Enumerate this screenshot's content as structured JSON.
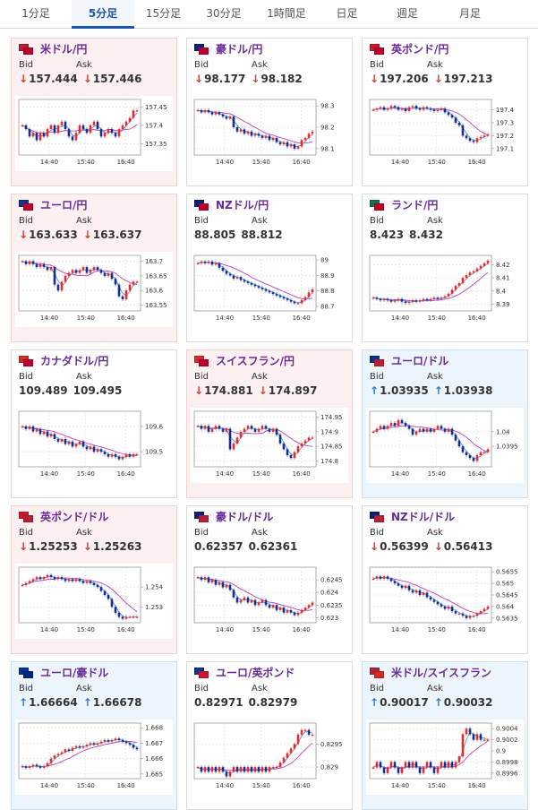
{
  "tabs": [
    {
      "label": "1分足",
      "active": false
    },
    {
      "label": "5分足",
      "active": true
    },
    {
      "label": "15分足",
      "active": false
    },
    {
      "label": "30分足",
      "active": false
    },
    {
      "label": "1時間足",
      "active": false
    },
    {
      "label": "日足",
      "active": false
    },
    {
      "label": "週足",
      "active": false
    },
    {
      "label": "月足",
      "active": false
    }
  ],
  "labels": {
    "bid": "Bid",
    "ask": "Ask"
  },
  "colors": {
    "up_candle": "#e22d2d",
    "down_candle": "#1a2d8f",
    "ma_line": "#c040c0",
    "line": "#3b9ad9",
    "arrow_down": "#d63b3b",
    "arrow_up": "#2a7fd4"
  },
  "cards": [
    {
      "pair": "米ドル/円",
      "theme": "red",
      "flags": [
        "#b22234",
        "#bc002d"
      ],
      "bid": "157.444",
      "ask": "157.446",
      "dir": "down",
      "chart_data": {
        "type": "candlestick",
        "x_ticks": [
          "14:40",
          "15:40",
          "16:40"
        ],
        "y_ticks": [
          "157.45",
          "157.4",
          "157.35"
        ],
        "ylim": [
          157.32,
          157.47
        ],
        "close": [
          157.4,
          157.39,
          157.37,
          157.38,
          157.36,
          157.38,
          157.37,
          157.39,
          157.4,
          157.38,
          157.4,
          157.41,
          157.39,
          157.37,
          157.36,
          157.38,
          157.4,
          157.39,
          157.38,
          157.4,
          157.41,
          157.39,
          157.37,
          157.38,
          157.39,
          157.38,
          157.37,
          157.39,
          157.4,
          157.41,
          157.42,
          157.44,
          157.44
        ]
      }
    },
    {
      "pair": "豪ドル/円",
      "theme": "white",
      "flags": [
        "#00247d",
        "#bc002d"
      ],
      "bid": "98.177",
      "ask": "98.182",
      "dir": "down",
      "chart_data": {
        "type": "candlestick",
        "x_ticks": [
          "14:40",
          "15:40",
          "16:40"
        ],
        "y_ticks": [
          "98.3",
          "98.2",
          "98.1"
        ],
        "ylim": [
          98.07,
          98.33
        ],
        "close": [
          98.28,
          98.27,
          98.28,
          98.27,
          98.26,
          98.27,
          98.26,
          98.25,
          98.24,
          98.25,
          98.2,
          98.18,
          98.19,
          98.17,
          98.18,
          98.16,
          98.17,
          98.16,
          98.15,
          98.16,
          98.14,
          98.15,
          98.13,
          98.12,
          98.13,
          98.11,
          98.12,
          98.1,
          98.11,
          98.14,
          98.15,
          98.17,
          98.18
        ]
      }
    },
    {
      "pair": "英ポンド/円",
      "theme": "white",
      "flags": [
        "#cf142b",
        "#bc002d"
      ],
      "bid": "197.206",
      "ask": "197.213",
      "dir": "down",
      "chart_data": {
        "type": "candlestick",
        "x_ticks": [
          "14:40",
          "15:40",
          "16:40"
        ],
        "y_ticks": [
          "197.4",
          "197.3",
          "197.2",
          "197.1"
        ],
        "ylim": [
          197.05,
          197.48
        ],
        "close": [
          197.4,
          197.41,
          197.42,
          197.4,
          197.41,
          197.43,
          197.42,
          197.4,
          197.41,
          197.39,
          197.42,
          197.43,
          197.41,
          197.4,
          197.42,
          197.41,
          197.4,
          197.39,
          197.4,
          197.41,
          197.38,
          197.36,
          197.34,
          197.3,
          197.28,
          197.2,
          197.18,
          197.16,
          197.15,
          197.18,
          197.19,
          197.2,
          197.21
        ]
      }
    },
    {
      "pair": "ユーロ/円",
      "theme": "red",
      "flags": [
        "#003399",
        "#bc002d"
      ],
      "bid": "163.633",
      "ask": "163.637",
      "dir": "down",
      "chart_data": {
        "type": "candlestick",
        "x_ticks": [
          "14:40",
          "15:40",
          "16:40"
        ],
        "y_ticks": [
          "163.7",
          "163.65",
          "163.6",
          "163.55"
        ],
        "ylim": [
          163.53,
          163.72
        ],
        "close": [
          163.7,
          163.69,
          163.7,
          163.69,
          163.68,
          163.69,
          163.68,
          163.67,
          163.68,
          163.62,
          163.6,
          163.63,
          163.65,
          163.66,
          163.67,
          163.66,
          163.67,
          163.68,
          163.66,
          163.67,
          163.68,
          163.67,
          163.66,
          163.65,
          163.66,
          163.64,
          163.62,
          163.58,
          163.57,
          163.6,
          163.62,
          163.63,
          163.63
        ]
      }
    },
    {
      "pair": "NZドル/円",
      "theme": "white",
      "flags": [
        "#00247d",
        "#bc002d"
      ],
      "bid": "88.805",
      "ask": "88.812",
      "dir": "none",
      "chart_data": {
        "type": "candlestick",
        "x_ticks": [
          "14:40",
          "15:40",
          "16:40"
        ],
        "y_ticks": [
          "89",
          "88.9",
          "88.8",
          "88.7"
        ],
        "ylim": [
          88.67,
          89.03
        ],
        "close": [
          88.98,
          88.99,
          88.98,
          88.99,
          88.97,
          88.98,
          88.95,
          88.93,
          88.91,
          88.9,
          88.88,
          88.89,
          88.87,
          88.86,
          88.85,
          88.84,
          88.83,
          88.82,
          88.81,
          88.8,
          88.79,
          88.78,
          88.77,
          88.76,
          88.75,
          88.74,
          88.73,
          88.72,
          88.72,
          88.74,
          88.76,
          88.79,
          88.81
        ]
      }
    },
    {
      "pair": "ランド/円",
      "theme": "white",
      "flags": [
        "#007a4d",
        "#bc002d"
      ],
      "bid": "8.423",
      "ask": "8.432",
      "dir": "none",
      "chart_data": {
        "type": "candlestick",
        "x_ticks": [
          "14:40",
          "15:40",
          "16:40"
        ],
        "y_ticks": [
          "8.42",
          "8.41",
          "8.4",
          "8.39"
        ],
        "ylim": [
          8.385,
          8.427
        ],
        "close": [
          8.395,
          8.394,
          8.393,
          8.394,
          8.393,
          8.392,
          8.393,
          8.394,
          8.392,
          8.391,
          8.392,
          8.393,
          8.392,
          8.393,
          8.394,
          8.393,
          8.394,
          8.395,
          8.394,
          8.395,
          8.396,
          8.398,
          8.401,
          8.404,
          8.406,
          8.41,
          8.412,
          8.414,
          8.415,
          8.417,
          8.419,
          8.421,
          8.423
        ]
      }
    },
    {
      "pair": "カナダドル/円",
      "theme": "white",
      "flags": [
        "#d52b1e",
        "#bc002d"
      ],
      "bid": "109.489",
      "ask": "109.495",
      "dir": "none",
      "chart_data": {
        "type": "candlestick",
        "x_ticks": [
          "14:40",
          "15:40",
          "16:40"
        ],
        "y_ticks": [
          "109.6",
          "109.5"
        ],
        "ylim": [
          109.44,
          109.66
        ],
        "close": [
          109.6,
          109.59,
          109.6,
          109.58,
          109.59,
          109.57,
          109.58,
          109.56,
          109.57,
          109.55,
          109.54,
          109.55,
          109.53,
          109.54,
          109.52,
          109.53,
          109.54,
          109.52,
          109.51,
          109.52,
          109.5,
          109.51,
          109.5,
          109.49,
          109.48,
          109.49,
          109.48,
          109.47,
          109.48,
          109.49,
          109.48,
          109.49,
          109.49
        ]
      }
    },
    {
      "pair": "スイスフラン/円",
      "theme": "red",
      "flags": [
        "#d52b1e",
        "#bc002d"
      ],
      "bid": "174.881",
      "ask": "174.897",
      "dir": "down",
      "chart_data": {
        "type": "candlestick",
        "x_ticks": [
          "14:40",
          "15:40",
          "16:40"
        ],
        "y_ticks": [
          "174.95",
          "174.9",
          "174.85",
          "174.8"
        ],
        "ylim": [
          174.78,
          174.97
        ],
        "close": [
          174.92,
          174.91,
          174.92,
          174.9,
          174.91,
          174.92,
          174.91,
          174.9,
          174.91,
          174.84,
          174.86,
          174.88,
          174.9,
          174.91,
          174.92,
          174.91,
          174.9,
          174.91,
          174.92,
          174.91,
          174.9,
          174.91,
          174.89,
          174.86,
          174.84,
          174.82,
          174.81,
          174.83,
          174.85,
          174.86,
          174.87,
          174.88,
          174.88
        ]
      }
    },
    {
      "pair": "ユーロ/ドル",
      "theme": "blue",
      "flags": [
        "#003399",
        "#b22234"
      ],
      "bid": "1.03935",
      "ask": "1.03938",
      "dir": "up",
      "chart_data": {
        "type": "candlestick",
        "x_ticks": [
          "14:40",
          "15:40",
          "16:40"
        ],
        "y_ticks": [
          "1.04",
          "1.0395"
        ],
        "ylim": [
          1.0388,
          1.0407
        ],
        "close": [
          1.04,
          1.0401,
          1.0402,
          1.0401,
          1.0402,
          1.0403,
          1.0402,
          1.0404,
          1.0403,
          1.0402,
          1.0401,
          1.0399,
          1.04,
          1.0401,
          1.04,
          1.0401,
          1.04,
          1.0401,
          1.0402,
          1.0401,
          1.04,
          1.0401,
          1.0399,
          1.0397,
          1.0395,
          1.0393,
          1.0392,
          1.0391,
          1.039,
          1.0392,
          1.0393,
          1.0393,
          1.0394
        ]
      }
    },
    {
      "pair": "英ポンド/ドル",
      "theme": "red",
      "flags": [
        "#cf142b",
        "#b22234"
      ],
      "bid": "1.25253",
      "ask": "1.25263",
      "dir": "down",
      "chart_data": {
        "type": "candlestick",
        "x_ticks": [
          "14:40",
          "15:40",
          "16:40"
        ],
        "y_ticks": [
          "1.254",
          "1.253"
        ],
        "ylim": [
          1.2522,
          1.255
        ],
        "close": [
          1.2541,
          1.2542,
          1.2543,
          1.2544,
          1.2545,
          1.2544,
          1.2545,
          1.2546,
          1.2545,
          1.2544,
          1.2545,
          1.2544,
          1.2543,
          1.2544,
          1.2543,
          1.2544,
          1.2543,
          1.2542,
          1.2543,
          1.2542,
          1.2541,
          1.254,
          1.2538,
          1.2536,
          1.2534,
          1.253,
          1.2527,
          1.2525,
          1.2524,
          1.2525,
          1.2525,
          1.2525,
          1.2525
        ]
      }
    },
    {
      "pair": "豪ドル/ドル",
      "theme": "white",
      "flags": [
        "#00247d",
        "#b22234"
      ],
      "bid": "0.62357",
      "ask": "0.62361",
      "dir": "none",
      "chart_data": {
        "type": "candlestick",
        "x_ticks": [
          "14:40",
          "15:40",
          "16:40"
        ],
        "y_ticks": [
          "0.6245",
          "0.624",
          "0.6235",
          "0.623"
        ],
        "ylim": [
          0.6228,
          0.625
        ],
        "close": [
          0.6246,
          0.6245,
          0.6246,
          0.6244,
          0.6245,
          0.6243,
          0.6244,
          0.6242,
          0.6243,
          0.6241,
          0.6238,
          0.6236,
          0.6237,
          0.6238,
          0.6236,
          0.6237,
          0.6235,
          0.6236,
          0.6237,
          0.6235,
          0.6234,
          0.6235,
          0.6233,
          0.6234,
          0.6232,
          0.6233,
          0.6232,
          0.6231,
          0.6232,
          0.6233,
          0.6234,
          0.6235,
          0.6236
        ]
      }
    },
    {
      "pair": "NZドル/ドル",
      "theme": "white",
      "flags": [
        "#00247d",
        "#b22234"
      ],
      "bid": "0.56399",
      "ask": "0.56413",
      "dir": "down",
      "chart_data": {
        "type": "candlestick",
        "x_ticks": [
          "14:40",
          "15:40",
          "16:40"
        ],
        "y_ticks": [
          "0.5655",
          "0.565",
          "0.5645",
          "0.564",
          "0.5635"
        ],
        "ylim": [
          0.5633,
          0.5657
        ],
        "close": [
          0.5652,
          0.5653,
          0.5652,
          0.5653,
          0.5652,
          0.5651,
          0.565,
          0.5649,
          0.5648,
          0.5649,
          0.5647,
          0.5646,
          0.5647,
          0.5645,
          0.5646,
          0.5644,
          0.5643,
          0.5642,
          0.5641,
          0.564,
          0.5639,
          0.564,
          0.5638,
          0.5637,
          0.5637,
          0.5636,
          0.5635,
          0.5636,
          0.5636,
          0.5637,
          0.5638,
          0.5639,
          0.564
        ]
      }
    },
    {
      "pair": "ユーロ/豪ドル",
      "theme": "blue",
      "flags": [
        "#003399",
        "#00247d"
      ],
      "bid": "1.66664",
      "ask": "1.66678",
      "dir": "up",
      "chart_data": {
        "type": "candlestick",
        "x_ticks": [
          "14:40",
          "15:40",
          "16:40"
        ],
        "y_ticks": [
          "1.668",
          "1.667",
          "1.666",
          "1.665"
        ],
        "ylim": [
          1.6647,
          1.6683
        ],
        "close": [
          1.6655,
          1.6654,
          1.6655,
          1.6656,
          1.6655,
          1.6654,
          1.6655,
          1.6657,
          1.666,
          1.6662,
          1.6663,
          1.6664,
          1.6666,
          1.6665,
          1.6667,
          1.6668,
          1.6667,
          1.6668,
          1.6669,
          1.667,
          1.6669,
          1.667,
          1.6671,
          1.6672,
          1.6671,
          1.6672,
          1.6673,
          1.6672,
          1.6671,
          1.667,
          1.6669,
          1.6667,
          1.6666
        ]
      }
    },
    {
      "pair": "ユーロ/英ポンド",
      "theme": "white",
      "flags": [
        "#003399",
        "#cf142b"
      ],
      "bid": "0.82971",
      "ask": "0.82979",
      "dir": "none",
      "chart_data": {
        "type": "candlestick",
        "x_ticks": [
          "14:40",
          "15:40",
          "16:40"
        ],
        "y_ticks": [
          "0.8295",
          "0.829"
        ],
        "ylim": [
          0.82875,
          0.82995
        ],
        "close": [
          0.829,
          0.8289,
          0.829,
          0.8289,
          0.829,
          0.8289,
          0.829,
          0.8289,
          0.8288,
          0.8289,
          0.829,
          0.8289,
          0.829,
          0.8289,
          0.829,
          0.8289,
          0.829,
          0.8289,
          0.829,
          0.8289,
          0.829,
          0.829,
          0.829,
          0.8291,
          0.8292,
          0.8293,
          0.8294,
          0.8295,
          0.8297,
          0.8298,
          0.8298,
          0.8297,
          0.8297
        ]
      }
    },
    {
      "pair": "米ドル/スイスフラン",
      "theme": "blue",
      "flags": [
        "#b22234",
        "#d52b1e"
      ],
      "bid": "0.90017",
      "ask": "0.90032",
      "dir": "up",
      "chart_data": {
        "type": "candlestick",
        "x_ticks": [
          "14:40",
          "15:40",
          "16:40"
        ],
        "y_ticks": [
          "0.9004",
          "0.9002",
          "0.9",
          "0.8998",
          "0.8996"
        ],
        "ylim": [
          0.8995,
          0.9005
        ],
        "close": [
          0.8997,
          0.8998,
          0.8997,
          0.8996,
          0.8997,
          0.8998,
          0.8997,
          0.8996,
          0.8997,
          0.8998,
          0.8997,
          0.8998,
          0.8997,
          0.8996,
          0.8997,
          0.8998,
          0.8997,
          0.8996,
          0.8997,
          0.8998,
          0.8997,
          0.8998,
          0.8997,
          0.8998,
          0.8999,
          0.9003,
          0.9004,
          0.9003,
          0.9002,
          0.9003,
          0.9002,
          0.9002,
          0.9002
        ]
      }
    }
  ]
}
